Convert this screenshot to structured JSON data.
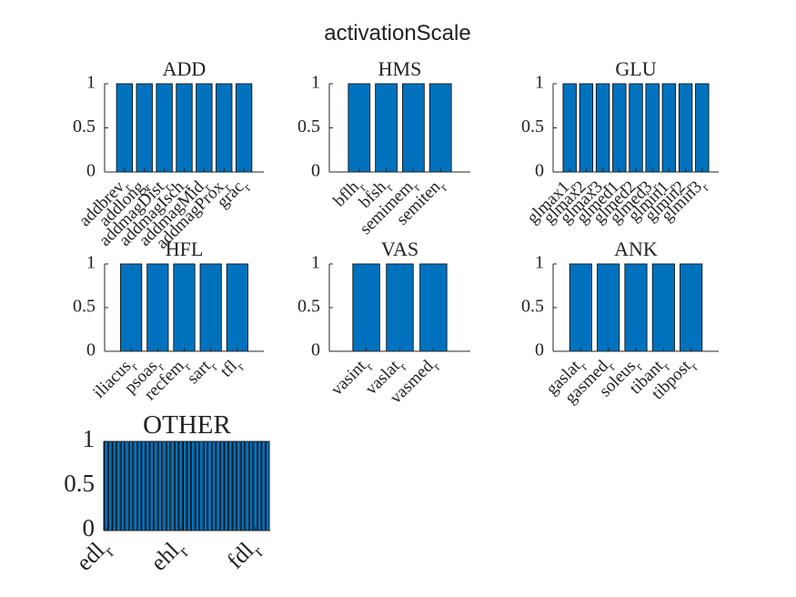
{
  "title": "activationScale",
  "chart_data": [
    {
      "type": "bar",
      "title": "ADD",
      "categories": [
        "addbrev",
        "addlong",
        "addmagDist",
        "addmagIsch",
        "addmagMid",
        "addmagProx",
        "grac"
      ],
      "subscript": "r",
      "values": [
        1,
        1,
        1,
        1,
        1,
        1,
        1
      ],
      "color": "#0072bd",
      "ylim": [
        0,
        1
      ],
      "yticks": [
        0,
        0.5,
        1
      ]
    },
    {
      "type": "bar",
      "title": "HMS",
      "categories": [
        "bflh",
        "bfsh",
        "semimem",
        "semiten"
      ],
      "subscript": "r",
      "values": [
        1,
        1,
        1,
        1
      ],
      "color": "#0072bd",
      "ylim": [
        0,
        1
      ],
      "yticks": [
        0,
        0.5,
        1
      ]
    },
    {
      "type": "bar",
      "title": "GLU",
      "categories": [
        "glmax1",
        "glmax2",
        "glmax3",
        "glmed1",
        "glmed2",
        "glmed3",
        "glmin1",
        "glmin2",
        "glmin3"
      ],
      "subscript": "r",
      "values": [
        1,
        1,
        1,
        1,
        1,
        1,
        1,
        1,
        1
      ],
      "color": "#0072bd",
      "ylim": [
        0,
        1
      ],
      "yticks": [
        0,
        0.5,
        1
      ]
    },
    {
      "type": "bar",
      "title": "HFL",
      "categories": [
        "iliacus",
        "psoas",
        "recfem",
        "sart",
        "tfl"
      ],
      "subscript": "r",
      "values": [
        1,
        1,
        1,
        1,
        1
      ],
      "color": "#0072bd",
      "ylim": [
        0,
        1
      ],
      "yticks": [
        0,
        0.5,
        1
      ]
    },
    {
      "type": "bar",
      "title": "VAS",
      "categories": [
        "vasint",
        "vaslat",
        "vasmed"
      ],
      "subscript": "r",
      "values": [
        1,
        1,
        1
      ],
      "color": "#0072bd",
      "ylim": [
        0,
        1
      ],
      "yticks": [
        0,
        0.5,
        1
      ]
    },
    {
      "type": "bar",
      "title": "ANK",
      "categories": [
        "gaslat",
        "gasmed",
        "soleus",
        "tibant",
        "tibpost"
      ],
      "subscript": "r",
      "values": [
        1,
        1,
        1,
        1,
        1
      ],
      "color": "#0072bd",
      "ylim": [
        0,
        1
      ],
      "yticks": [
        0,
        0.5,
        1
      ]
    },
    {
      "type": "bar",
      "title": "OTHER",
      "categories": [
        "edl",
        null,
        null,
        null,
        null,
        null,
        null,
        null,
        null,
        null,
        null,
        null,
        null,
        null,
        null,
        null,
        null,
        null,
        "ehl",
        null,
        null,
        null,
        null,
        null,
        null,
        null,
        null,
        null,
        null,
        null,
        null,
        null,
        null,
        null,
        null,
        null,
        "fdl",
        null,
        null,
        null
      ],
      "subscript": "r",
      "values": [
        1,
        1,
        1,
        1,
        1,
        1,
        1,
        1,
        1,
        1,
        1,
        1,
        1,
        1,
        1,
        1,
        1,
        1,
        1,
        1,
        1,
        1,
        1,
        1,
        1,
        1,
        1,
        1,
        1,
        1,
        1,
        1,
        1,
        1,
        1,
        1,
        1,
        1,
        1,
        1
      ],
      "color": "#0072bd",
      "ylim": [
        0,
        1
      ],
      "yticks": [
        0,
        0.5,
        1
      ]
    }
  ]
}
